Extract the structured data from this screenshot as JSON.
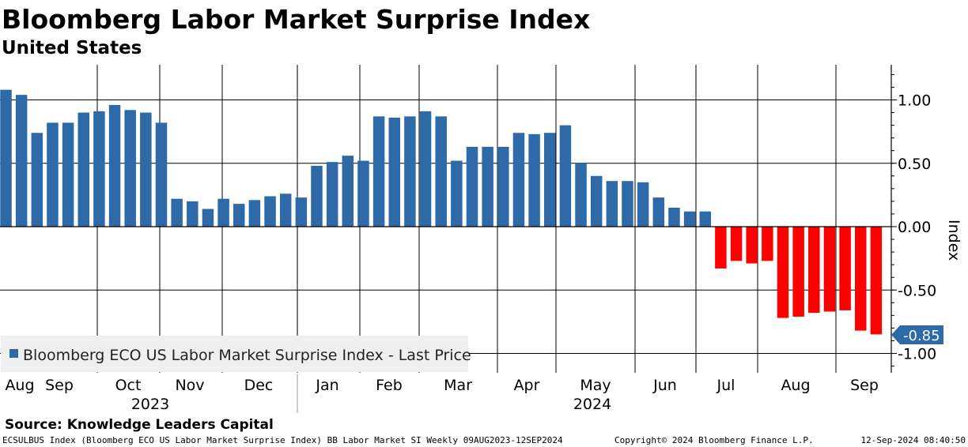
{
  "chart_data": {
    "type": "bar",
    "title": "Bloomberg Labor Market Surprise Index",
    "subtitle": "United States",
    "ylabel": "Index",
    "ylim": [
      -1.15,
      1.28
    ],
    "yticks": [
      "1.00",
      "0.50",
      "0.00",
      "-0.50",
      "-1.00"
    ],
    "ytick_values": [
      1.0,
      0.5,
      0.0,
      -0.5,
      -1.0
    ],
    "series": [
      {
        "name": "Bloomberg ECO US Labor Market Surprise Index - Last Price",
        "positive_color": "#2e6aa8",
        "negative_color": "#ff0000",
        "values": [
          1.08,
          1.04,
          0.74,
          0.82,
          0.82,
          0.9,
          0.91,
          0.96,
          0.92,
          0.9,
          0.82,
          0.22,
          0.2,
          0.14,
          0.22,
          0.18,
          0.21,
          0.24,
          0.26,
          0.23,
          0.48,
          0.51,
          0.56,
          0.52,
          0.87,
          0.86,
          0.87,
          0.91,
          0.87,
          0.52,
          0.63,
          0.63,
          0.63,
          0.74,
          0.73,
          0.74,
          0.8,
          0.5,
          0.4,
          0.36,
          0.36,
          0.35,
          0.23,
          0.15,
          0.12,
          0.12,
          -0.33,
          -0.27,
          -0.29,
          -0.27,
          -0.72,
          -0.71,
          -0.68,
          -0.67,
          -0.66,
          -0.82,
          -0.85
        ]
      }
    ],
    "last_value_label": "-0.85",
    "month_labels": [
      "Aug",
      "Sep",
      "Oct",
      "Nov",
      "Dec",
      "Jan",
      "Feb",
      "Mar",
      "Apr",
      "May",
      "Jun",
      "Jul",
      "Aug",
      "Sep"
    ],
    "year_labels": [
      "2023",
      "2024"
    ],
    "legend_position": "bottom-left"
  },
  "footer": {
    "source": "Source: Knowledge Leaders Capital",
    "ticker_info": "ECSULBUS Index (Bloomberg ECO US Labor Market Surprise Index) BB Labor Market SI  Weekly 09AUG2023-12SEP2024",
    "copyright": "Copyright© 2024 Bloomberg Finance L.P.",
    "timestamp": "12-Sep-2024 08:40:50"
  }
}
